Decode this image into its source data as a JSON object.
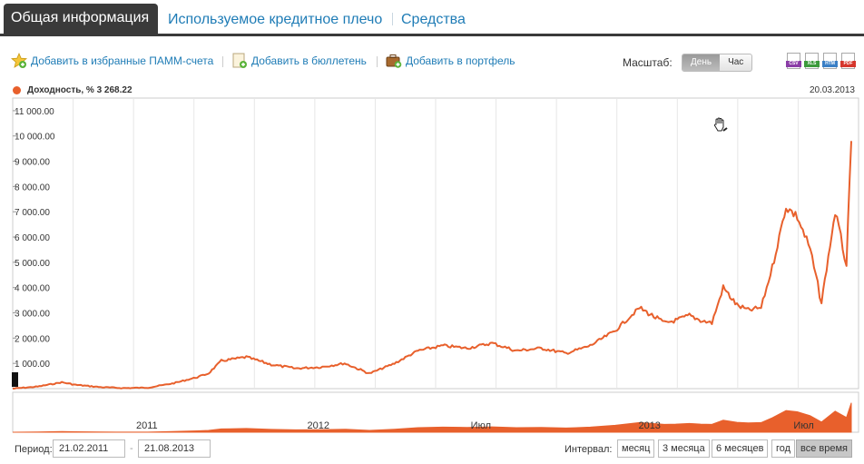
{
  "tabs": [
    {
      "label": "Общая информация",
      "active": true
    },
    {
      "label": "Используемое кредитное плечо",
      "active": false
    },
    {
      "label": "Средства",
      "active": false
    }
  ],
  "toolbar": {
    "add_favorite": "Добавить в избранные ПАММ-счета",
    "add_bulletin": "Добавить в бюллетень",
    "add_portfolio": "Добавить в портфель",
    "scale_label": "Масштаб:",
    "scale_options": [
      "День",
      "Час"
    ],
    "scale_selected": "День",
    "exports": [
      "CSV",
      "XLS",
      "HTM",
      "PDF"
    ]
  },
  "legend": {
    "text": "Доходность, % 3 268.22",
    "color": "#e8602c"
  },
  "date_right": "20.03.2013",
  "footer": {
    "period_label": "Период:",
    "date_from": "21.02.2011",
    "date_to": "21.08.2013",
    "dash": "-",
    "interval_label": "Интервал:",
    "intervals": [
      "месяц",
      "3 месяца",
      "6 месяцев",
      "год",
      "все время"
    ],
    "interval_selected": "все время"
  },
  "chart_data": {
    "type": "line",
    "series": [
      {
        "name": "Доходность, %",
        "color": "#e8602c",
        "x": [
          "2010-10-15",
          "2010-11-15",
          "2010-12-15",
          "2011-01-01",
          "2011-02-01",
          "2011-03-01",
          "2011-04-01",
          "2011-05-01",
          "2011-06-01",
          "2011-06-15",
          "2011-07-01",
          "2011-08-01",
          "2011-09-01",
          "2011-10-01",
          "2011-11-01",
          "2011-12-01",
          "2012-01-01",
          "2012-02-01",
          "2012-03-01",
          "2012-04-01",
          "2012-05-01",
          "2012-06-01",
          "2012-07-01",
          "2012-08-01",
          "2012-09-01",
          "2012-10-01",
          "2012-11-01",
          "2012-12-01",
          "2013-01-01",
          "2013-01-15",
          "2013-02-01",
          "2013-02-15",
          "2013-03-01",
          "2013-03-15",
          "2013-04-01",
          "2013-04-15",
          "2013-05-01",
          "2013-05-15",
          "2013-06-01",
          "2013-06-15",
          "2013-07-01",
          "2013-07-15",
          "2013-08-01",
          "2013-08-15",
          "2013-08-21"
        ],
        "y": [
          0,
          80,
          250,
          150,
          60,
          20,
          40,
          200,
          450,
          600,
          1100,
          1250,
          950,
          800,
          850,
          1000,
          600,
          1000,
          1500,
          1700,
          1600,
          1800,
          1500,
          1600,
          1400,
          1700,
          2300,
          3200,
          2600,
          2700,
          2900,
          2700,
          2600,
          4000,
          3300,
          3100,
          3200,
          4800,
          7200,
          6800,
          5500,
          3400,
          7000,
          4900,
          9800
        ]
      }
    ],
    "y_ticks": [
      "1 000.00",
      "2 000.00",
      "3 000.00",
      "4 000.00",
      "5 000.00",
      "6 000.00",
      "7 000.00",
      "8 000.00",
      "9 000.00",
      "10 000.00",
      "11 000.00"
    ],
    "ylim": [
      0,
      11500
    ],
    "x_labels": [
      "2011",
      "2012",
      "Июл",
      "2013",
      "Июл"
    ],
    "grid": true
  }
}
